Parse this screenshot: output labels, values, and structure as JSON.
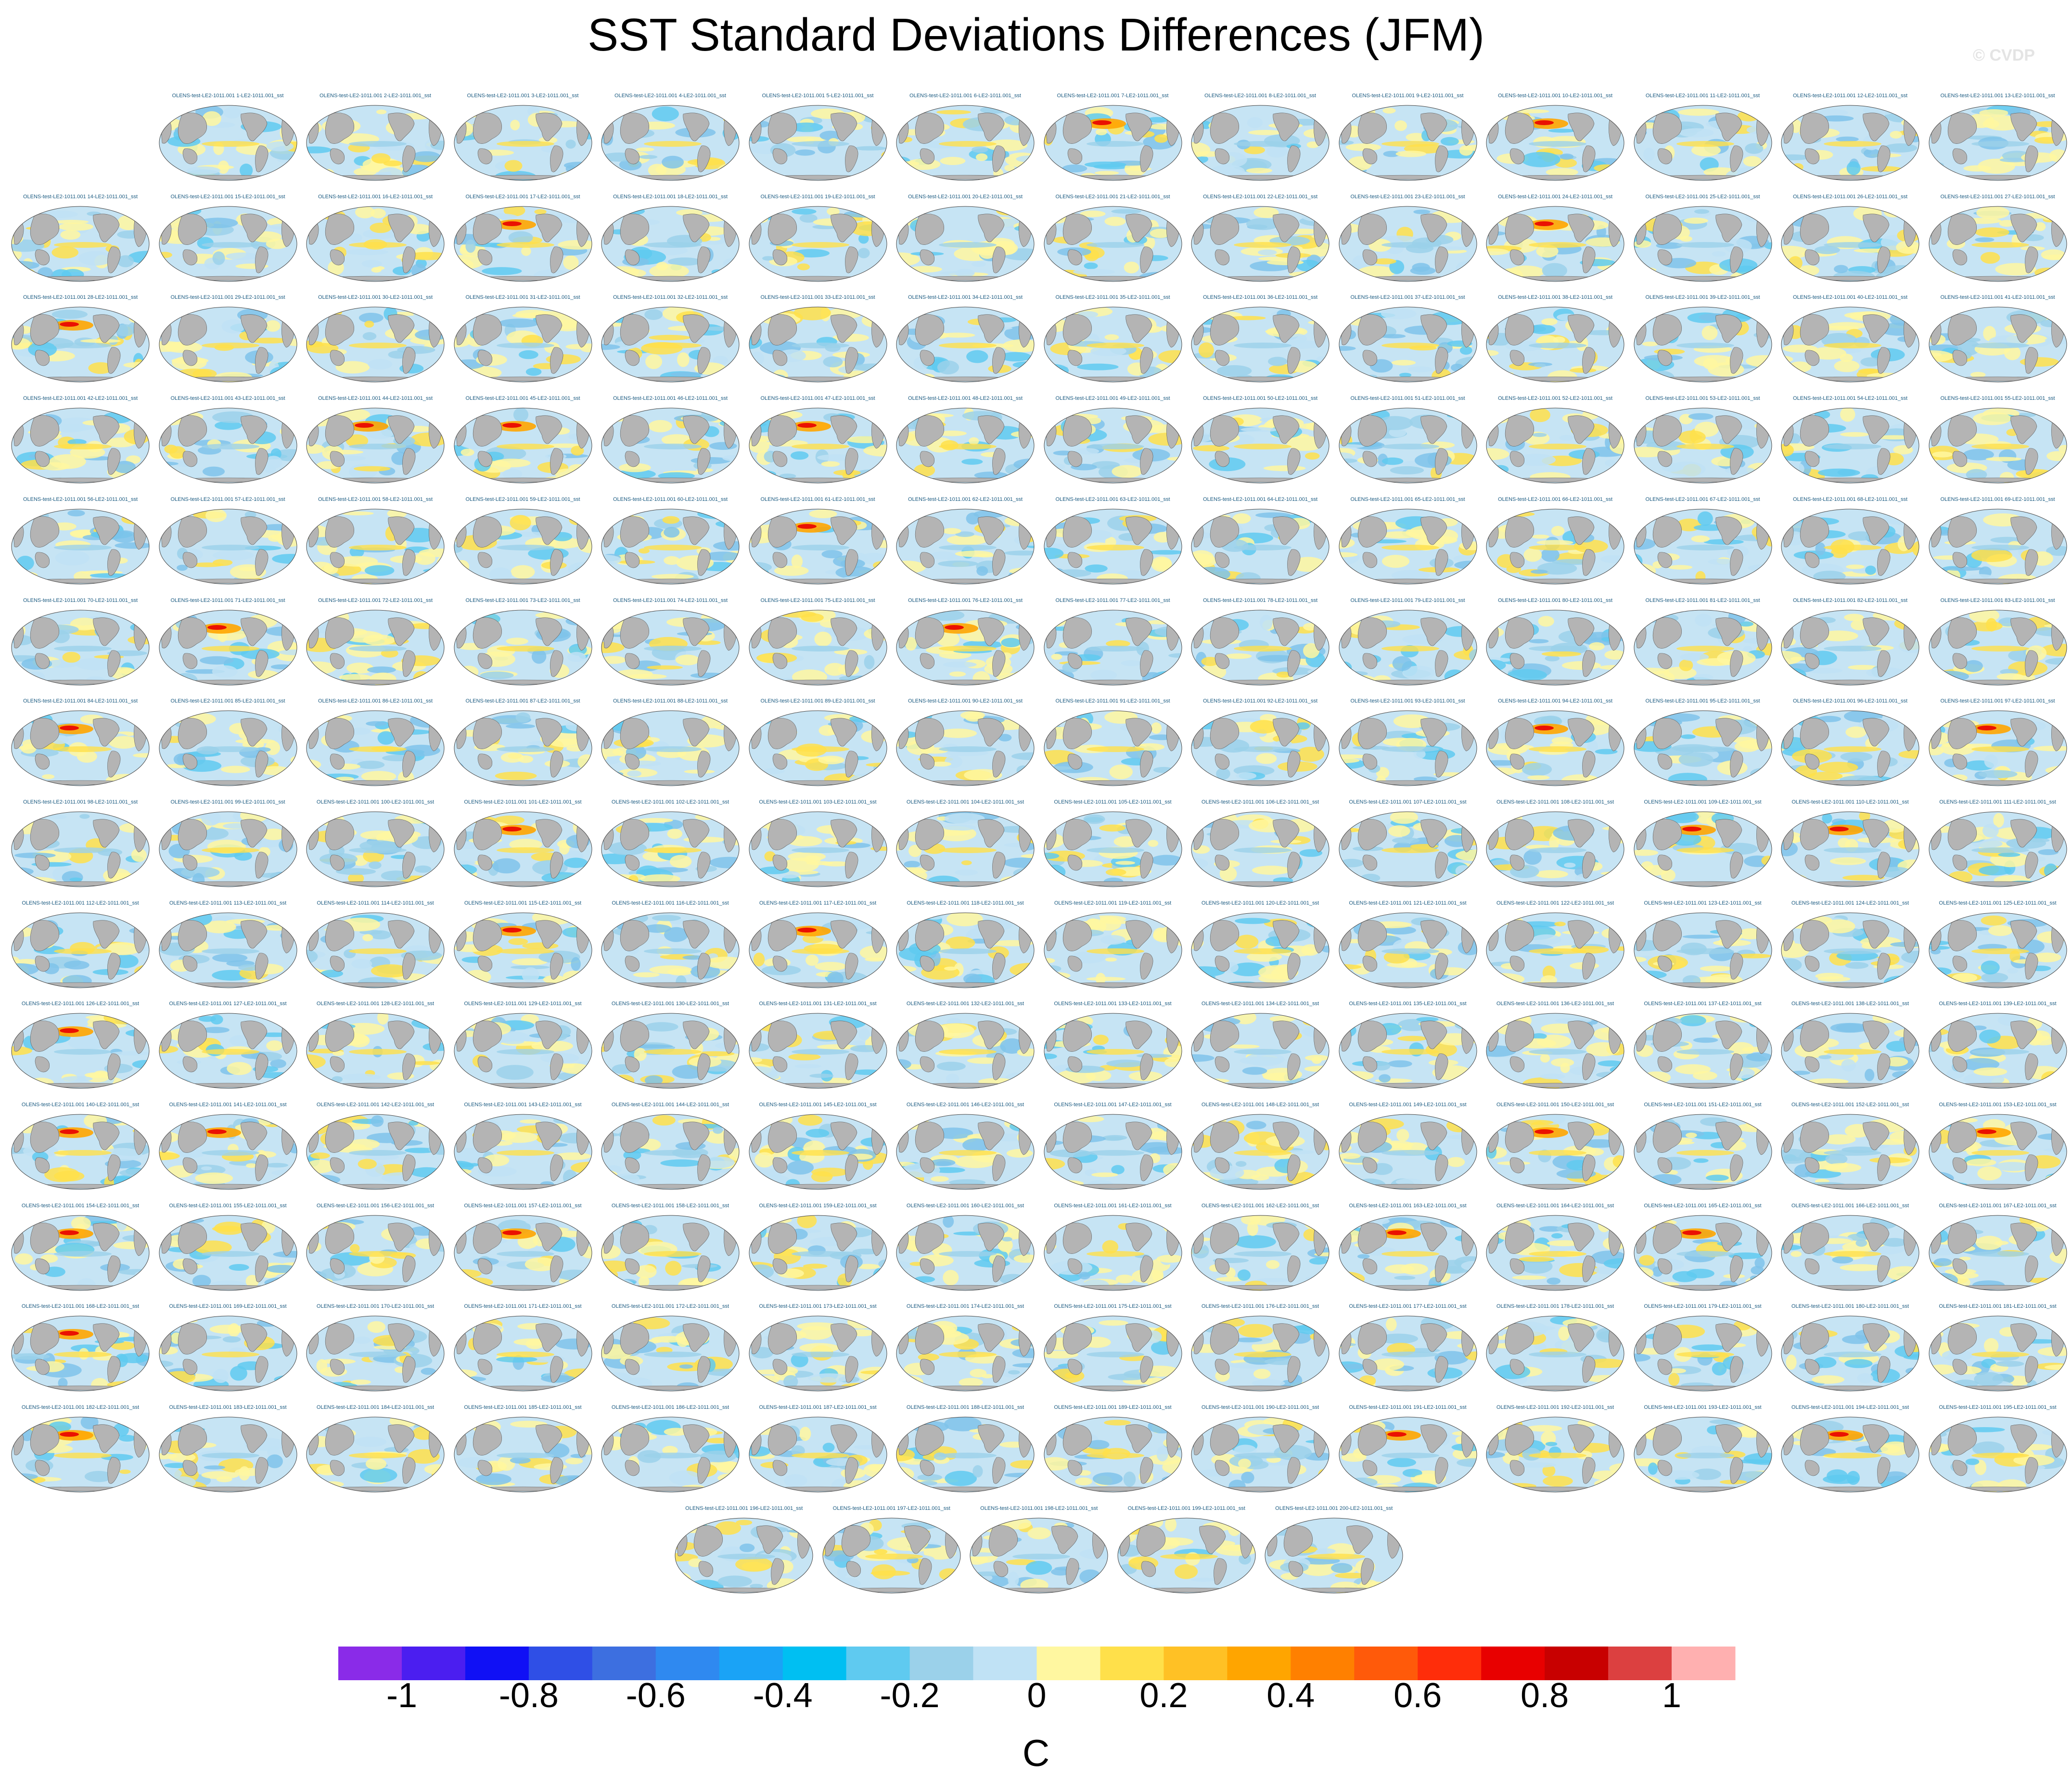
{
  "title": "SST Standard Deviations Differences (JFM)",
  "watermark": "© CVDP",
  "panel_label_prefix": "OLENS-test-LE2-1011.001 ",
  "panel_label_suffix": "-LE2-1011.001_sst",
  "panel_count": 200,
  "panels_per_row": 14,
  "colorbar": {
    "unit_label": "C",
    "colors": [
      "#8a2be8",
      "#4b1ef0",
      "#1010f5",
      "#2f4fe6",
      "#3d6fe0",
      "#2f89f0",
      "#1aa3f6",
      "#00bff2",
      "#5fcaf0",
      "#9bd1ea",
      "#c0e2f5",
      "#fff7a0",
      "#ffe04a",
      "#ffc125",
      "#ffa500",
      "#ff8000",
      "#ff5a0a",
      "#ff2d0a",
      "#e80000",
      "#c80000",
      "#dc4040",
      "#ffb0b0"
    ],
    "ticks": [
      "-1",
      "-0.8",
      "-0.6",
      "-0.4",
      "-0.2",
      "0",
      "0.2",
      "0.4",
      "0.6",
      "0.8",
      "1"
    ]
  },
  "chart_data": {
    "type": "heatmap",
    "title": "SST Standard Deviations Differences (JFM)",
    "map_projection": "Robinson (Pacific-centered)",
    "panel_grid": "14 columns x 15 rows (first row 13 panels right-aligned, last row 5 panels centered)",
    "colorbar_range": [
      -1.1,
      1.1
    ],
    "colorbar_levels": [
      -1.0,
      -0.9,
      -0.8,
      -0.7,
      -0.6,
      -0.5,
      -0.4,
      -0.3,
      -0.2,
      -0.1,
      0,
      0.1,
      0.2,
      0.3,
      0.4,
      0.5,
      0.6,
      0.7,
      0.8,
      0.9,
      1.0
    ],
    "colorbar_tick_labels": [
      "-1",
      "-0.8",
      "-0.6",
      "-0.4",
      "-0.2",
      "0",
      "0.2",
      "0.4",
      "0.6",
      "0.8",
      "1"
    ],
    "unit": "C",
    "panels_hot_north_pacific": [
      7,
      10,
      17,
      24,
      28,
      44,
      45,
      47,
      61,
      71,
      76,
      84,
      94,
      97,
      101,
      109,
      110,
      115,
      117,
      126,
      140,
      141,
      150,
      153,
      154,
      157,
      163,
      165,
      168,
      182,
      191,
      194
    ]
  }
}
